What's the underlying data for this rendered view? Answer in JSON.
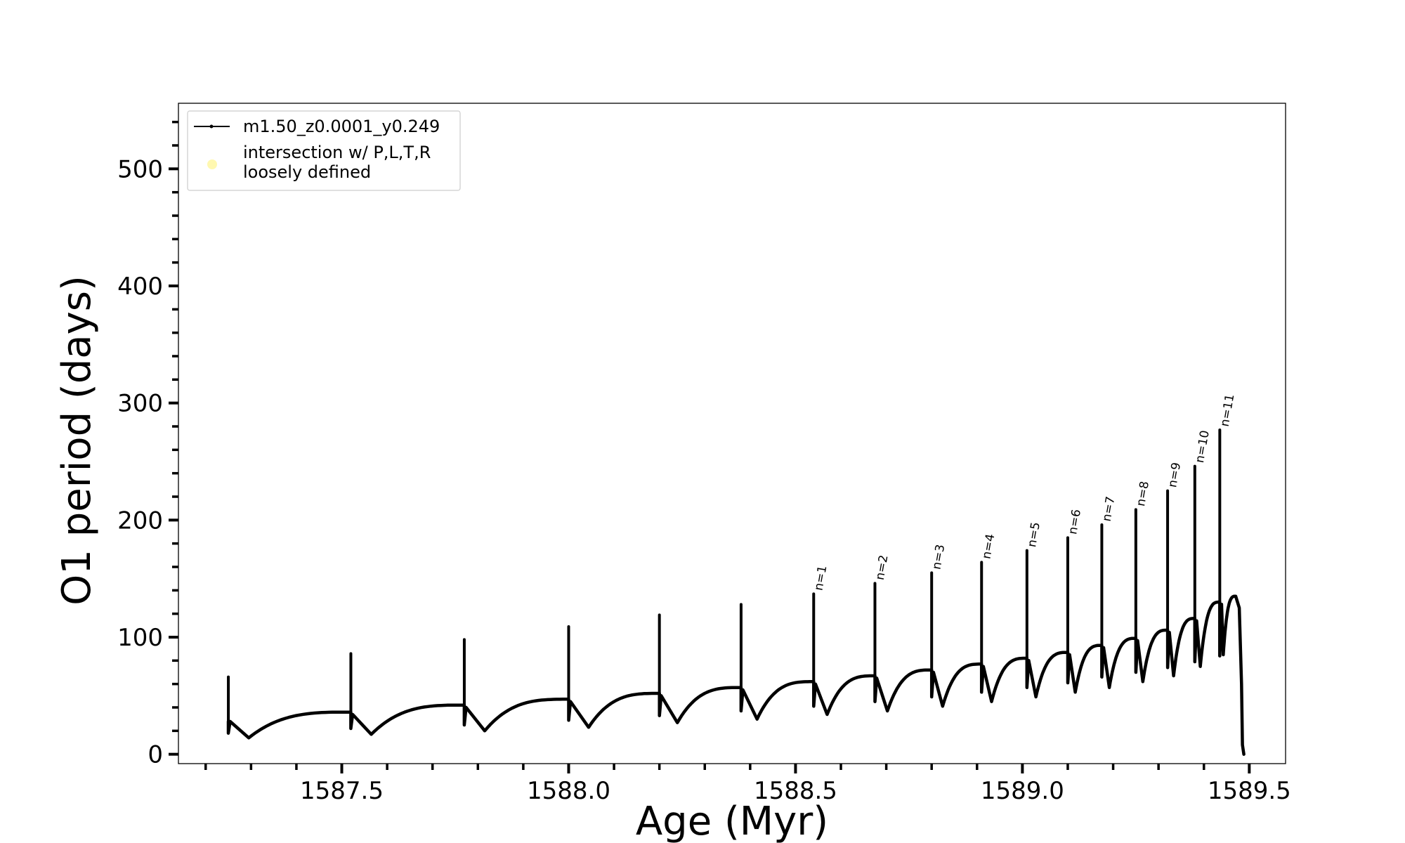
{
  "chart_data": {
    "type": "line",
    "title": "",
    "xlabel": "Age (Myr)",
    "ylabel": "O1 period (days)",
    "xlim": [
      1587.14,
      1589.58
    ],
    "ylim": [
      -8,
      556
    ],
    "x_ticks": [
      1587.5,
      1588.0,
      1588.5,
      1589.0,
      1589.5
    ],
    "x_tick_labels": [
      "1587.5",
      "1588.0",
      "1588.5",
      "1589.0",
      "1589.5"
    ],
    "y_ticks": [
      0,
      100,
      200,
      300,
      400,
      500
    ],
    "y_tick_labels": [
      "0",
      "100",
      "200",
      "300",
      "400",
      "500"
    ],
    "grid": false,
    "legend_position": "top-left",
    "legend": [
      {
        "label": "m1.50_z0.0001_y0.249",
        "marker": "line with small dots",
        "color": "#000000"
      },
      {
        "label": "intersection w/ P,L,T,R\nloosely defined",
        "marker": "circle",
        "color": "#fff8b0"
      }
    ],
    "series": [
      {
        "name": "m1.50_z0.0001_y0.249",
        "color": "#000000",
        "start": {
          "x": 1587.25,
          "y": 28
        },
        "end": {
          "x": 1589.488,
          "y": 0
        },
        "final_plateau_peak": {
          "x": 1589.47,
          "y": 135
        },
        "pulses": [
          {
            "x": 1587.25,
            "peak": 66,
            "pre": 30,
            "drop": 18,
            "dip": 14,
            "label": ""
          },
          {
            "x": 1587.52,
            "peak": 86,
            "pre": 36,
            "drop": 22,
            "dip": 17,
            "label": ""
          },
          {
            "x": 1587.77,
            "peak": 98,
            "pre": 42,
            "drop": 25,
            "dip": 20,
            "label": ""
          },
          {
            "x": 1588.0,
            "peak": 109,
            "pre": 47,
            "drop": 29,
            "dip": 23,
            "label": ""
          },
          {
            "x": 1588.2,
            "peak": 119,
            "pre": 52,
            "drop": 33,
            "dip": 27,
            "label": ""
          },
          {
            "x": 1588.38,
            "peak": 128,
            "pre": 57,
            "drop": 37,
            "dip": 30,
            "label": ""
          },
          {
            "x": 1588.54,
            "peak": 137,
            "pre": 62,
            "drop": 41,
            "dip": 34,
            "label": "n=1"
          },
          {
            "x": 1588.675,
            "peak": 146,
            "pre": 67,
            "drop": 45,
            "dip": 37,
            "label": "n=2"
          },
          {
            "x": 1588.8,
            "peak": 155,
            "pre": 72,
            "drop": 49,
            "dip": 41,
            "label": "n=3"
          },
          {
            "x": 1588.91,
            "peak": 164,
            "pre": 77,
            "drop": 53,
            "dip": 45,
            "label": "n=4"
          },
          {
            "x": 1589.01,
            "peak": 174,
            "pre": 82,
            "drop": 57,
            "dip": 49,
            "label": "n=5"
          },
          {
            "x": 1589.1,
            "peak": 185,
            "pre": 87,
            "drop": 61,
            "dip": 53,
            "label": "n=6"
          },
          {
            "x": 1589.175,
            "peak": 196,
            "pre": 93,
            "drop": 66,
            "dip": 57,
            "label": "n=7"
          },
          {
            "x": 1589.25,
            "peak": 209,
            "pre": 99,
            "drop": 70,
            "dip": 62,
            "label": "n=8"
          },
          {
            "x": 1589.32,
            "peak": 225,
            "pre": 106,
            "drop": 74,
            "dip": 67,
            "label": "n=9"
          },
          {
            "x": 1589.38,
            "peak": 246,
            "pre": 116,
            "drop": 79,
            "dip": 75,
            "label": "n=10"
          },
          {
            "x": 1589.435,
            "peak": 277,
            "pre": 130,
            "drop": 84,
            "dip": 85,
            "label": "n=11"
          }
        ]
      }
    ]
  }
}
